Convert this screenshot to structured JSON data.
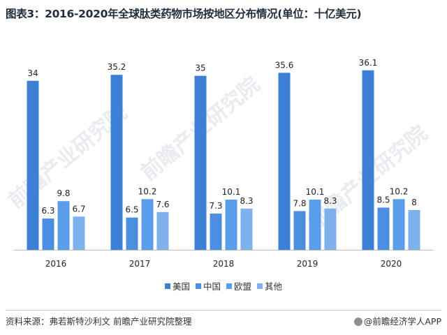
{
  "title": "图表3：2016-2020年全球肽类药物市场按地区分布情况(单位：十亿美元)",
  "watermarks": [
    "前瞻产业研究院",
    "前瞻产业研究院",
    "前瞻产业研究院"
  ],
  "source": "资料来源：弗若斯特沙利文 前瞻产业研究院整理",
  "brand": "@前瞻经济学人APP",
  "chart_data": {
    "type": "bar",
    "title": "图表3：2016-2020年全球肽类药物市场按地区分布情况(单位：十亿美元)",
    "categories": [
      "2016",
      "2017",
      "2018",
      "2019",
      "2020"
    ],
    "series": [
      {
        "name": "美国",
        "color": "#3c7fd6",
        "values": [
          34,
          35.2,
          35,
          35.6,
          36.1
        ]
      },
      {
        "name": "中国",
        "color": "#4a8fe0",
        "values": [
          6.3,
          6.5,
          7.3,
          7.8,
          8.5
        ]
      },
      {
        "name": "欧盟",
        "color": "#5c9deb",
        "values": [
          9.8,
          10.2,
          10.1,
          10.1,
          10.2
        ]
      },
      {
        "name": "其他",
        "color": "#7fb1ee",
        "values": [
          6.7,
          7.6,
          8.3,
          8.3,
          8
        ]
      }
    ],
    "value_labels": [
      [
        "34",
        "35.2",
        "35",
        "35.6",
        "36.1"
      ],
      [
        "6.3",
        "6.5",
        "7.3",
        "7.8",
        "8.5"
      ],
      [
        "9.8",
        "10.2",
        "10.1",
        "10.1",
        "10.2"
      ],
      [
        "6.7",
        "7.6",
        "8.3",
        "8.3",
        "8"
      ]
    ],
    "ylim": [
      0,
      40
    ],
    "grid": false,
    "legend_position": "bottom"
  }
}
